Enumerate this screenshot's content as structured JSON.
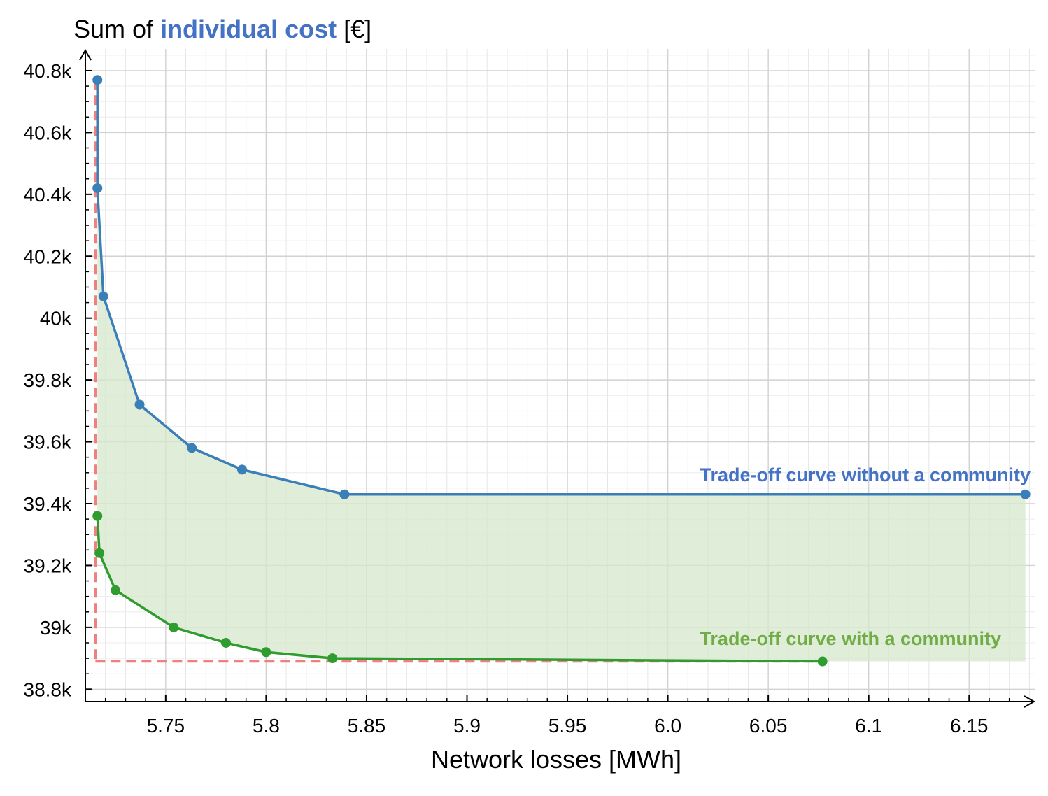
{
  "chart_data": {
    "type": "line",
    "ylabel_parts": [
      "Sum of ",
      "individual cost",
      " [€]"
    ],
    "xlabel": "Network losses [MWh]",
    "xlim": [
      5.71,
      6.183
    ],
    "ylim": [
      38.76,
      40.87
    ],
    "x_ticks": [
      5.75,
      5.8,
      5.85,
      5.9,
      5.95,
      6.0,
      6.05,
      6.1,
      6.15
    ],
    "x_tick_labels": [
      "5.75",
      "5.8",
      "5.85",
      "5.9",
      "5.95",
      "6.0",
      "6.05",
      "6.1",
      "6.15"
    ],
    "y_ticks": [
      38.8,
      39.0,
      39.2,
      39.4,
      39.6,
      39.8,
      40.0,
      40.2,
      40.4,
      40.6,
      40.8
    ],
    "y_tick_labels": [
      "38.8k",
      "39k",
      "39.2k",
      "39.4k",
      "39.6k",
      "39.8k",
      "40k",
      "40.2k",
      "40.4k",
      "40.6k",
      "40.8k"
    ],
    "grid": true,
    "series": [
      {
        "name": "Trade-off curve without a community",
        "color": "#3a7fb8",
        "x": [
          5.716,
          5.716,
          5.719,
          5.737,
          5.763,
          5.788,
          5.839,
          6.178
        ],
        "y": [
          40.77,
          40.42,
          40.07,
          39.72,
          39.58,
          39.51,
          39.43,
          39.43
        ]
      },
      {
        "name": "Trade-off curve with a community",
        "color": "#2e9c2e",
        "x": [
          5.716,
          5.717,
          5.725,
          5.754,
          5.78,
          5.8,
          5.833,
          6.077
        ],
        "y": [
          39.36,
          39.24,
          39.12,
          39.0,
          38.95,
          38.92,
          38.9,
          38.89
        ]
      }
    ],
    "reference_point": {
      "x": 5.715,
      "y": 38.89,
      "color": "#f08080"
    },
    "shaded_band": {
      "y_low": 38.89,
      "y_high": 39.43,
      "x_end": 6.178,
      "color": "#d5e8cc"
    },
    "annotation_colors": [
      "#4472c4",
      "#70ad47"
    ]
  }
}
